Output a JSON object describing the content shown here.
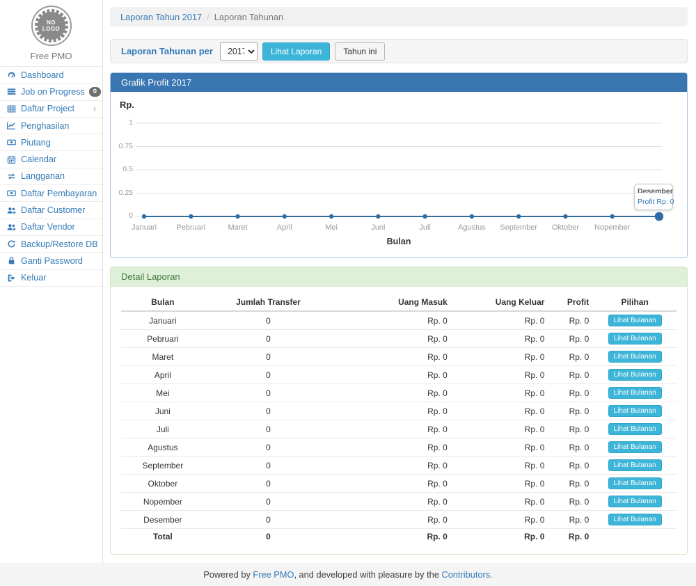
{
  "sidebar": {
    "logo_line1": "NO",
    "logo_line2": "LOGO",
    "brand": "Free PMO",
    "items": [
      {
        "icon": "tachometer-icon",
        "label": "Dashboard"
      },
      {
        "icon": "tasks-icon",
        "label": "Job on Progress",
        "badge": "0"
      },
      {
        "icon": "table-icon",
        "label": "Daftar Project",
        "chevron": "‹"
      },
      {
        "icon": "line-chart-icon",
        "label": "Penghasilan"
      },
      {
        "icon": "money-icon",
        "label": "Piutang"
      },
      {
        "icon": "calendar-icon",
        "label": "Calendar"
      },
      {
        "icon": "retweet-icon",
        "label": "Langganan"
      },
      {
        "icon": "money-icon",
        "label": "Daftar Pembayaran"
      },
      {
        "icon": "users-icon",
        "label": "Daftar Customer"
      },
      {
        "icon": "users-icon",
        "label": "Daftar Vendor"
      },
      {
        "icon": "refresh-icon",
        "label": "Backup/Restore DB"
      },
      {
        "icon": "lock-icon",
        "label": "Ganti Password"
      },
      {
        "icon": "sign-out-icon",
        "label": "Keluar"
      }
    ]
  },
  "breadcrumb": {
    "link": "Laporan Tahun 2017",
    "separator": "/",
    "current": "Laporan Tahunan"
  },
  "toolbar": {
    "label": "Laporan Tahunan per",
    "year_value": "2017",
    "view_button": "Lihat Laporan",
    "this_year_button": "Tahun ini"
  },
  "chart_panel": {
    "title": "Grafik Profit 2017"
  },
  "chart_data": {
    "type": "line",
    "title": "Grafik Profit 2017",
    "xlabel": "Bulan",
    "ylabel": "Rp.",
    "categories": [
      "Januari",
      "Pebruari",
      "Maret",
      "April",
      "Mei",
      "Juni",
      "Juli",
      "Agustus",
      "September",
      "Oktober",
      "Nopember",
      "Desember"
    ],
    "values": [
      0,
      0,
      0,
      0,
      0,
      0,
      0,
      0,
      0,
      0,
      0,
      0
    ],
    "yticks": [
      0,
      0.25,
      0.5,
      0.75,
      1
    ],
    "ylim": [
      0,
      1
    ],
    "grid": true,
    "legend": "none",
    "show_last_category_label": false,
    "highlight_index": 11,
    "tooltip": {
      "title": "Desember",
      "text": "Profit Rp: 0"
    }
  },
  "report": {
    "title": "Detail Laporan",
    "headers": [
      "Bulan",
      "Jumlah Transfer",
      "Uang Masuk",
      "Uang Keluar",
      "Profit",
      "Pilihan"
    ],
    "action_label": "Lihat Bulanan",
    "rows": [
      {
        "bulan": "Januari",
        "jumlah_transfer": "0",
        "uang_masuk": "Rp. 0",
        "uang_keluar": "Rp. 0",
        "profit": "Rp. 0"
      },
      {
        "bulan": "Pebruari",
        "jumlah_transfer": "0",
        "uang_masuk": "Rp. 0",
        "uang_keluar": "Rp. 0",
        "profit": "Rp. 0"
      },
      {
        "bulan": "Maret",
        "jumlah_transfer": "0",
        "uang_masuk": "Rp. 0",
        "uang_keluar": "Rp. 0",
        "profit": "Rp. 0"
      },
      {
        "bulan": "April",
        "jumlah_transfer": "0",
        "uang_masuk": "Rp. 0",
        "uang_keluar": "Rp. 0",
        "profit": "Rp. 0"
      },
      {
        "bulan": "Mei",
        "jumlah_transfer": "0",
        "uang_masuk": "Rp. 0",
        "uang_keluar": "Rp. 0",
        "profit": "Rp. 0"
      },
      {
        "bulan": "Juni",
        "jumlah_transfer": "0",
        "uang_masuk": "Rp. 0",
        "uang_keluar": "Rp. 0",
        "profit": "Rp. 0"
      },
      {
        "bulan": "Juli",
        "jumlah_transfer": "0",
        "uang_masuk": "Rp. 0",
        "uang_keluar": "Rp. 0",
        "profit": "Rp. 0"
      },
      {
        "bulan": "Agustus",
        "jumlah_transfer": "0",
        "uang_masuk": "Rp. 0",
        "uang_keluar": "Rp. 0",
        "profit": "Rp. 0"
      },
      {
        "bulan": "September",
        "jumlah_transfer": "0",
        "uang_masuk": "Rp. 0",
        "uang_keluar": "Rp. 0",
        "profit": "Rp. 0"
      },
      {
        "bulan": "Oktober",
        "jumlah_transfer": "0",
        "uang_masuk": "Rp. 0",
        "uang_keluar": "Rp. 0",
        "profit": "Rp. 0"
      },
      {
        "bulan": "Nopember",
        "jumlah_transfer": "0",
        "uang_masuk": "Rp. 0",
        "uang_keluar": "Rp. 0",
        "profit": "Rp. 0"
      },
      {
        "bulan": "Desember",
        "jumlah_transfer": "0",
        "uang_masuk": "Rp. 0",
        "uang_keluar": "Rp. 0",
        "profit": "Rp. 0"
      }
    ],
    "total": {
      "bulan": "Total",
      "jumlah_transfer": "0",
      "uang_masuk": "Rp. 0",
      "uang_keluar": "Rp. 0",
      "profit": "Rp. 0"
    }
  },
  "footer": {
    "prefix": "Powered by ",
    "link1": "Free PMO",
    "middle": ", and developed with pleasure by the ",
    "link2": "Contributors."
  },
  "colors": {
    "accent": "#337ab7",
    "panel_primary_header": "#3a76b1",
    "info_button": "#3db5d8",
    "success_header_bg": "#dff0d8",
    "success_header_text": "#3c763d",
    "line_color": "#2e6da4",
    "grid_line": "#e3e3e3"
  }
}
